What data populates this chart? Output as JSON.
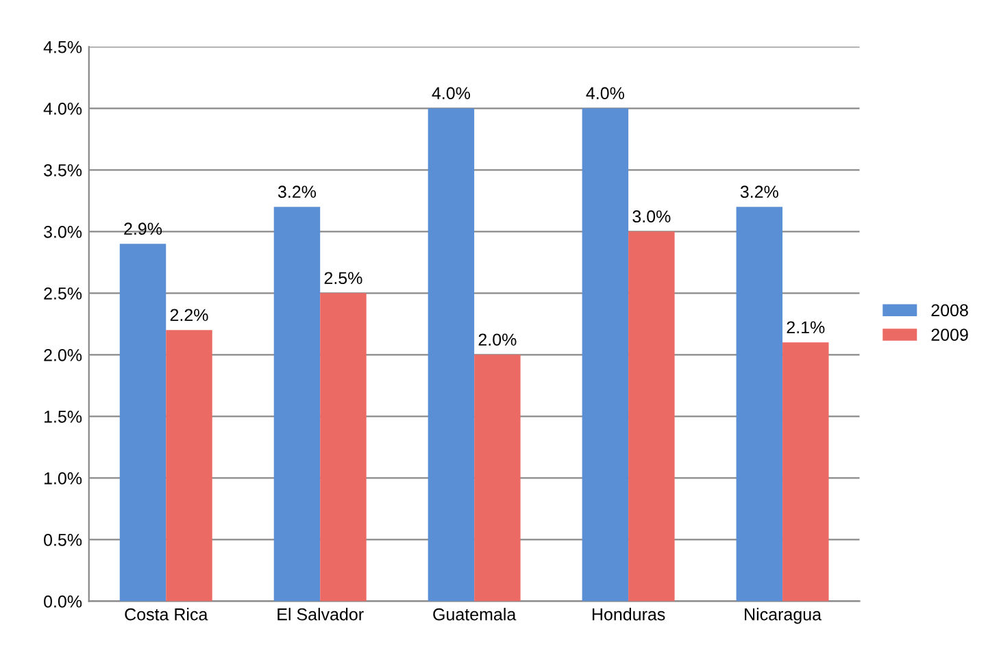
{
  "chart_data": {
    "type": "bar",
    "categories": [
      "Costa Rica",
      "El Salvador",
      "Guatemala",
      "Honduras",
      "Nicaragua"
    ],
    "series": [
      {
        "name": "2008",
        "color": "#5a8fd6",
        "values": [
          2.9,
          3.2,
          4.0,
          4.0,
          3.2
        ],
        "value_labels": [
          "2.9%",
          "3.2%",
          "4.0%",
          "4.0%",
          "3.2%"
        ]
      },
      {
        "name": "2009",
        "color": "#ec6a64",
        "values": [
          2.2,
          2.5,
          2.0,
          3.0,
          2.1
        ],
        "value_labels": [
          "2.2%",
          "2.5%",
          "2.0%",
          "3.0%",
          "2.1%"
        ]
      }
    ],
    "ylim": [
      0,
      4.5
    ],
    "yticks": [
      {
        "value": 0,
        "label": "0.0%"
      },
      {
        "value": 0.5,
        "label": "0.5%"
      },
      {
        "value": 1.0,
        "label": "1.0%"
      },
      {
        "value": 1.5,
        "label": "1.5%"
      },
      {
        "value": 2.0,
        "label": "2.0%"
      },
      {
        "value": 2.5,
        "label": "2.5%"
      },
      {
        "value": 3.0,
        "label": "3.0%"
      },
      {
        "value": 3.5,
        "label": "3.5%"
      },
      {
        "value": 4.0,
        "label": "4.0%"
      },
      {
        "value": 4.5,
        "label": "4.5%"
      }
    ],
    "grid": "y",
    "legend": "right"
  }
}
